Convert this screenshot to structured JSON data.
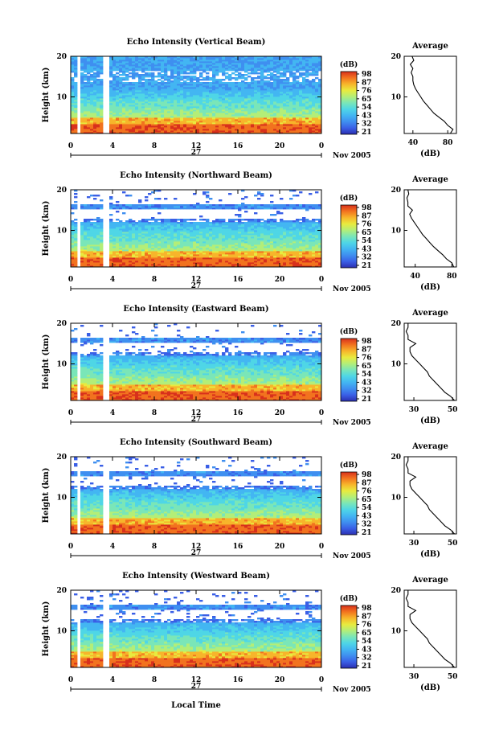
{
  "chart_data": {
    "type": "heatmap",
    "xlabel": "Local Time",
    "date_label": "Nov 2005",
    "day_label": "27",
    "x_ticks": [
      "0",
      "4",
      "8",
      "12",
      "16",
      "20",
      "0"
    ],
    "xlim": [
      0,
      24
    ],
    "ylabel": "Height (km)",
    "y_ticks": [
      "20",
      "10"
    ],
    "ylim": [
      1,
      20
    ],
    "colorbar_unit": "(dB)",
    "profile_title": "Average",
    "profile_xlabel": "(dB)",
    "colormap": [
      "#2b2fb0",
      "#3a5fe6",
      "#3f8ff0",
      "#43b6f2",
      "#4fd6e6",
      "#7ae6b8",
      "#b3ee78",
      "#e9ea3e",
      "#f7b52b",
      "#f2731f",
      "#d8301c"
    ],
    "gaps": [
      {
        "start": 0.55,
        "end": 0.8
      },
      {
        "start": 3.1,
        "end": 3.55
      }
    ],
    "beams": [
      {
        "name": "Vertical Beam",
        "title": "Echo Intensity (Vertical Beam)",
        "colorbar_ticks": [
          "98",
          "87",
          "76",
          "65",
          "54",
          "43",
          "32",
          "21"
        ],
        "profile_ticks": [
          "40",
          "80"
        ],
        "profile_xlim": [
          30,
          90
        ],
        "profile": [
          [
            1,
            83
          ],
          [
            2,
            86
          ],
          [
            3,
            80
          ],
          [
            4,
            76
          ],
          [
            5,
            70
          ],
          [
            6,
            64
          ],
          [
            7,
            60
          ],
          [
            8,
            56
          ],
          [
            9,
            52
          ],
          [
            10,
            49
          ],
          [
            11,
            46
          ],
          [
            12,
            43
          ],
          [
            13,
            41
          ],
          [
            14,
            40
          ],
          [
            15,
            40
          ],
          [
            16,
            38
          ],
          [
            17,
            40
          ],
          [
            18,
            37
          ],
          [
            19,
            41
          ],
          [
            20,
            39
          ]
        ]
      },
      {
        "name": "Northward Beam",
        "title": "Echo Intensity (Northward Beam)",
        "colorbar_ticks": [
          "98",
          "87",
          "76",
          "65",
          "54",
          "43",
          "32",
          "21"
        ],
        "profile_ticks": [
          "40",
          "80"
        ],
        "profile_xlim": [
          28,
          85
        ],
        "profile": [
          [
            1,
            82
          ],
          [
            2,
            80
          ],
          [
            3,
            74
          ],
          [
            4,
            70
          ],
          [
            5,
            65
          ],
          [
            6,
            60
          ],
          [
            7,
            56
          ],
          [
            8,
            52
          ],
          [
            9,
            48
          ],
          [
            10,
            45
          ],
          [
            11,
            42
          ],
          [
            12,
            39
          ],
          [
            13,
            36
          ],
          [
            14,
            34
          ],
          [
            15,
            37
          ],
          [
            16,
            32
          ],
          [
            17,
            32
          ],
          [
            18,
            31
          ],
          [
            19,
            33
          ],
          [
            20,
            32
          ]
        ]
      },
      {
        "name": "Eastward Beam",
        "title": "Echo Intensity (Eastward Beam)",
        "colorbar_ticks": [
          "98",
          "87",
          "76",
          "65",
          "54",
          "43",
          "32",
          "21"
        ],
        "profile_ticks": [
          "30",
          "50"
        ],
        "profile_xlim": [
          25,
          52
        ],
        "profile": [
          [
            1,
            51
          ],
          [
            2,
            49
          ],
          [
            3,
            46
          ],
          [
            4,
            44
          ],
          [
            5,
            42
          ],
          [
            6,
            40
          ],
          [
            7,
            38
          ],
          [
            8,
            37
          ],
          [
            9,
            35
          ],
          [
            10,
            33
          ],
          [
            11,
            31
          ],
          [
            12,
            29
          ],
          [
            13,
            28
          ],
          [
            14,
            28
          ],
          [
            15,
            31
          ],
          [
            16,
            27
          ],
          [
            17,
            27
          ],
          [
            18,
            26
          ],
          [
            19,
            27
          ],
          [
            20,
            27
          ]
        ]
      },
      {
        "name": "Southward Beam",
        "title": "Echo Intensity (Southward Beam)",
        "colorbar_ticks": [
          "98",
          "87",
          "76",
          "65",
          "54",
          "43",
          "32",
          "21"
        ],
        "profile_ticks": [
          "30",
          "50"
        ],
        "profile_xlim": [
          25,
          52
        ],
        "profile": [
          [
            1,
            51
          ],
          [
            2,
            49
          ],
          [
            3,
            46
          ],
          [
            4,
            44
          ],
          [
            5,
            42
          ],
          [
            6,
            40
          ],
          [
            7,
            38
          ],
          [
            8,
            37
          ],
          [
            9,
            35
          ],
          [
            10,
            33
          ],
          [
            11,
            31
          ],
          [
            12,
            29
          ],
          [
            13,
            28
          ],
          [
            14,
            28
          ],
          [
            15,
            31
          ],
          [
            16,
            27
          ],
          [
            17,
            27
          ],
          [
            18,
            26
          ],
          [
            19,
            27
          ],
          [
            20,
            27
          ]
        ]
      },
      {
        "name": "Westward Beam",
        "title": "Echo Intensity (Westward Beam)",
        "colorbar_ticks": [
          "98",
          "87",
          "76",
          "65",
          "54",
          "43",
          "32",
          "21"
        ],
        "profile_ticks": [
          "30",
          "50"
        ],
        "profile_xlim": [
          25,
          52
        ],
        "profile": [
          [
            1,
            51
          ],
          [
            2,
            49
          ],
          [
            3,
            46
          ],
          [
            4,
            44
          ],
          [
            5,
            42
          ],
          [
            6,
            40
          ],
          [
            7,
            38
          ],
          [
            8,
            37
          ],
          [
            9,
            35
          ],
          [
            10,
            33
          ],
          [
            11,
            31
          ],
          [
            12,
            29
          ],
          [
            13,
            28
          ],
          [
            14,
            28
          ],
          [
            15,
            31
          ],
          [
            16,
            27
          ],
          [
            17,
            27
          ],
          [
            18,
            26
          ],
          [
            19,
            27
          ],
          [
            20,
            27
          ]
        ]
      }
    ]
  }
}
